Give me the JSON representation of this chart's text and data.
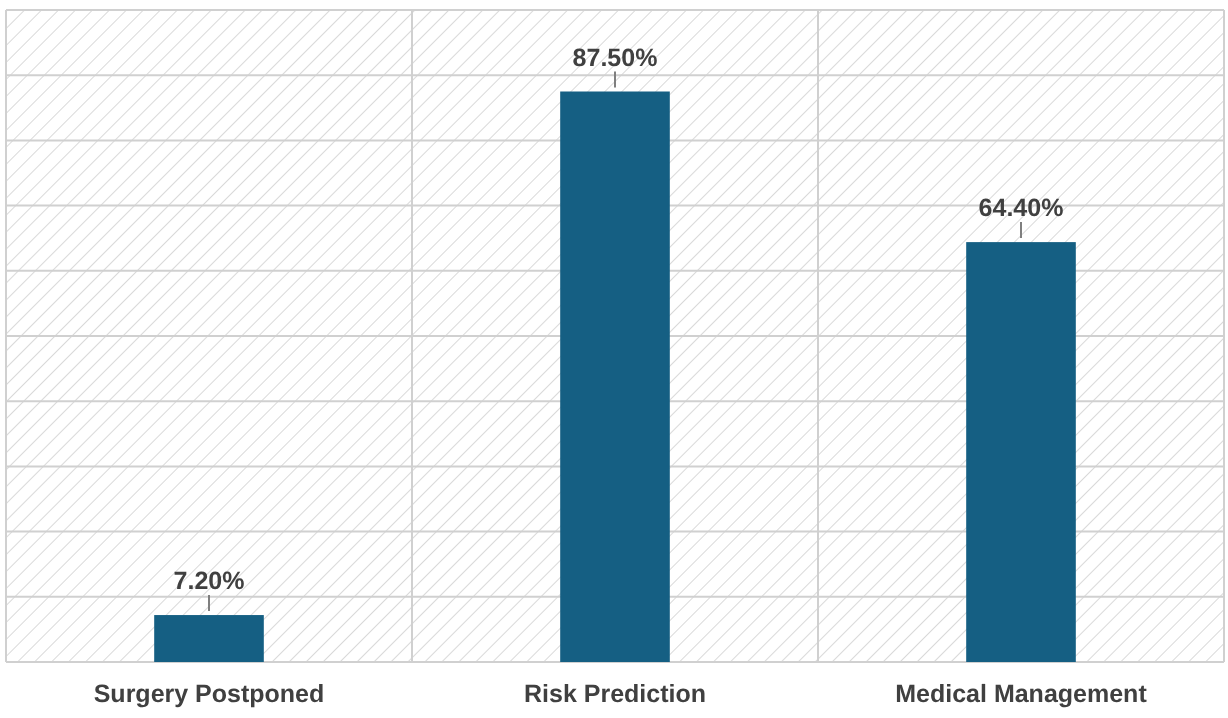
{
  "chart_data": {
    "type": "bar",
    "categories": [
      "Surgery Postponed",
      "Risk Prediction",
      "Medical Management"
    ],
    "values": [
      7.2,
      87.5,
      64.4
    ],
    "value_labels": [
      "7.20%",
      "87.50%",
      "64.40%"
    ],
    "color": "#155f83",
    "ylim": [
      0,
      100
    ],
    "yticks": [
      {
        "value": 0,
        "label": null
      },
      {
        "value": 10,
        "label": null
      },
      {
        "value": 20,
        "label": null
      },
      {
        "value": 30,
        "label": null
      },
      {
        "value": 40,
        "label": null
      },
      {
        "value": 50,
        "label": null
      },
      {
        "value": 60,
        "label": null
      },
      {
        "value": 70,
        "label": null
      },
      {
        "value": 80,
        "label": null
      },
      {
        "value": 90,
        "label": null
      },
      {
        "value": 100,
        "label": null
      }
    ],
    "tick_labels": "x",
    "grid": true
  }
}
